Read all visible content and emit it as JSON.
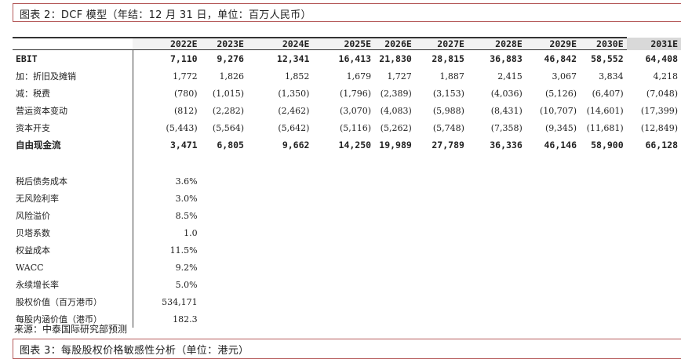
{
  "figure2_title": "图表 2：DCF 模型（年结：12 月 31 日，单位：百万人民币）",
  "years": [
    "2022E",
    "2023E",
    "2024E",
    "2025E",
    "2026E",
    "2027E",
    "2028E",
    "2029E",
    "2030E",
    "2031E"
  ],
  "rows": [
    {
      "label": "EBIT",
      "bold": true,
      "values": [
        "7,110",
        "9,276",
        "12,341",
        "16,413",
        "21,830",
        "28,815",
        "36,883",
        "46,842",
        "58,552",
        "64,408"
      ]
    },
    {
      "label": "加：折旧及摊销",
      "bold": false,
      "values": [
        "1,772",
        "1,826",
        "1,852",
        "1,679",
        "1,727",
        "1,887",
        "2,415",
        "3,067",
        "3,834",
        "4,218"
      ]
    },
    {
      "label": "减：税费",
      "bold": false,
      "values": [
        "(780)",
        "(1,015)",
        "(1,350)",
        "(1,796)",
        "(2,389)",
        "(3,153)",
        "(4,036)",
        "(5,126)",
        "(6,407)",
        "(7,048)"
      ]
    },
    {
      "label": "营运资本变动",
      "bold": false,
      "values": [
        "(812)",
        "(2,282)",
        "(2,462)",
        "(3,070)",
        "(4,083)",
        "(5,988)",
        "(8,431)",
        "(10,707)",
        "(14,601)",
        "(17,399)"
      ]
    },
    {
      "label": "资本开支",
      "bold": false,
      "values": [
        "(5,443)",
        "(5,564)",
        "(5,642)",
        "(5,116)",
        "(5,262)",
        "(5,748)",
        "(7,358)",
        "(9,345)",
        "(11,681)",
        "(12,849)"
      ]
    },
    {
      "label": "自由现金流",
      "bold": true,
      "values": [
        "3,471",
        "6,805",
        "9,662",
        "14,250",
        "19,989",
        "27,789",
        "36,336",
        "46,146",
        "58,900",
        "66,128"
      ]
    }
  ],
  "params": [
    {
      "label": "税后债务成本",
      "value": "3.6%"
    },
    {
      "label": "无风险利率",
      "value": "3.0%"
    },
    {
      "label": "风险溢价",
      "value": "8.5%"
    },
    {
      "label": "贝塔系数",
      "value": "1.0"
    },
    {
      "label": "权益成本",
      "value": "11.5%"
    },
    {
      "label": "WACC",
      "value": "9.2%"
    },
    {
      "label": "永续增长率",
      "value": "5.0%"
    },
    {
      "label": "股权价值（百万港币）",
      "value": "534,171"
    },
    {
      "label": "每股内涵价值（港币）",
      "value": "182.3"
    }
  ],
  "source": "来源：中泰国际研究部预测",
  "figure3_title": "图表 3：每股股权价格敏感性分析（单位：港元）"
}
